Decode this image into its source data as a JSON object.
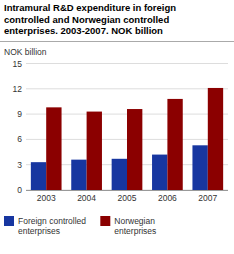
{
  "chart_data": {
    "type": "bar",
    "title": "Intramural R&D expenditure in foreign\ncontrolled and Norwegian controlled\nenterprises. 2003-2007. NOK billion",
    "y_label": "NOK billion",
    "categories": [
      "2003",
      "2004",
      "2005",
      "2006",
      "2007"
    ],
    "series": [
      {
        "name": "Foreign controlled\nenterprises",
        "color": "#1736a0",
        "values": [
          3.3,
          3.6,
          3.7,
          4.2,
          5.3
        ]
      },
      {
        "name": "Norwegian\nenterprises",
        "color": "#8b0000",
        "values": [
          9.8,
          9.3,
          9.6,
          10.8,
          12.1
        ]
      }
    ],
    "ylim": [
      0,
      15
    ],
    "yticks": [
      0,
      3,
      6,
      9,
      12,
      15
    ],
    "grid": true,
    "legend": "bottom"
  }
}
